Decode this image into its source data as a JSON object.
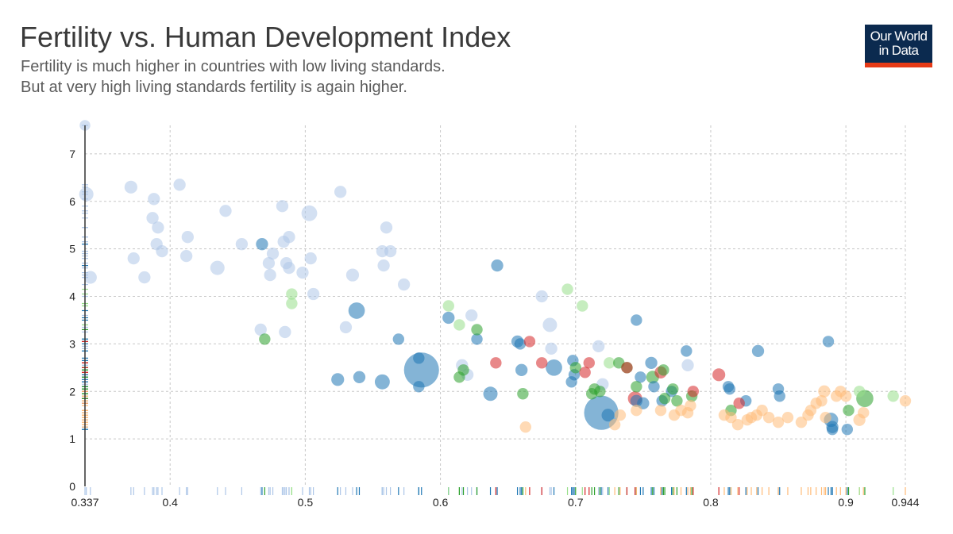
{
  "header": {
    "title": "Fertility vs. Human Development Index",
    "subtitle_lines": [
      "Fertility is much higher in countries with low living standards.",
      "But at very high living standards fertility is again higher."
    ]
  },
  "logo": {
    "line1": "Our World",
    "line2": "in Data",
    "bg_color": "#0b2a4f",
    "bar_color": "#e63a16"
  },
  "chart_data": {
    "type": "scatter",
    "title": "Fertility vs. Human Development Index",
    "xlabel": "",
    "ylabel": "",
    "xlim": [
      0.337,
      0.944
    ],
    "ylim": [
      0,
      7.6
    ],
    "x_ticks": [
      0.337,
      0.4,
      0.5,
      0.6,
      0.7,
      0.8,
      0.9,
      0.944
    ],
    "y_ticks": [
      0,
      1,
      2,
      3,
      4,
      5,
      6,
      7
    ],
    "grid": true,
    "colors": {
      "light_blue": "#aec7e8",
      "blue": "#1f77b4",
      "light_green": "#98df8a",
      "green": "#2ca02c",
      "red": "#d62728",
      "orange": "#ffbb78"
    },
    "points": [
      [
        0.337,
        7.6,
        0.75,
        "light_blue"
      ],
      [
        0.338,
        6.15,
        1,
        "light_blue"
      ],
      [
        0.341,
        4.4,
        0.9,
        "light_blue"
      ],
      [
        0.371,
        6.3,
        0.9,
        "light_blue"
      ],
      [
        0.373,
        4.8,
        0.85,
        "light_blue"
      ],
      [
        0.381,
        4.4,
        0.85,
        "light_blue"
      ],
      [
        0.388,
        6.05,
        0.85,
        "light_blue"
      ],
      [
        0.387,
        5.65,
        0.85,
        "light_blue"
      ],
      [
        0.391,
        5.45,
        0.85,
        "light_blue"
      ],
      [
        0.39,
        5.1,
        0.85,
        "light_blue"
      ],
      [
        0.394,
        4.95,
        0.85,
        "light_blue"
      ],
      [
        0.407,
        6.35,
        0.85,
        "light_blue"
      ],
      [
        0.413,
        5.25,
        0.85,
        "light_blue"
      ],
      [
        0.412,
        4.85,
        0.85,
        "light_blue"
      ],
      [
        0.435,
        4.6,
        1,
        "light_blue"
      ],
      [
        0.441,
        5.8,
        0.85,
        "light_blue"
      ],
      [
        0.453,
        5.1,
        0.85,
        "light_blue"
      ],
      [
        0.467,
        3.3,
        0.85,
        "light_blue"
      ],
      [
        0.473,
        4.7,
        0.85,
        "light_blue"
      ],
      [
        0.474,
        4.45,
        0.85,
        "light_blue"
      ],
      [
        0.476,
        4.9,
        0.85,
        "light_blue"
      ],
      [
        0.483,
        5.9,
        0.85,
        "light_blue"
      ],
      [
        0.484,
        5.15,
        0.85,
        "light_blue"
      ],
      [
        0.488,
        5.25,
        0.85,
        "light_blue"
      ],
      [
        0.486,
        4.7,
        0.85,
        "light_blue"
      ],
      [
        0.488,
        4.6,
        0.85,
        "light_blue"
      ],
      [
        0.485,
        3.25,
        0.85,
        "light_blue"
      ],
      [
        0.498,
        4.5,
        0.85,
        "light_blue"
      ],
      [
        0.503,
        5.75,
        1.1,
        "light_blue"
      ],
      [
        0.504,
        4.8,
        0.85,
        "light_blue"
      ],
      [
        0.506,
        4.05,
        0.85,
        "light_blue"
      ],
      [
        0.526,
        6.2,
        0.85,
        "light_blue"
      ],
      [
        0.53,
        3.35,
        0.85,
        "light_blue"
      ],
      [
        0.535,
        4.45,
        0.9,
        "light_blue"
      ],
      [
        0.557,
        4.95,
        0.85,
        "light_blue"
      ],
      [
        0.558,
        4.65,
        0.85,
        "light_blue"
      ],
      [
        0.56,
        5.45,
        0.85,
        "light_blue"
      ],
      [
        0.563,
        4.95,
        0.85,
        "light_blue"
      ],
      [
        0.573,
        4.25,
        0.85,
        "light_blue"
      ],
      [
        0.616,
        2.55,
        0.85,
        "light_blue"
      ],
      [
        0.623,
        3.6,
        0.85,
        "light_blue"
      ],
      [
        0.62,
        2.35,
        0.85,
        "light_blue"
      ],
      [
        0.675,
        4.0,
        0.85,
        "light_blue"
      ],
      [
        0.681,
        3.4,
        1,
        "light_blue"
      ],
      [
        0.682,
        2.9,
        0.85,
        "light_blue"
      ],
      [
        0.717,
        2.95,
        0.85,
        "light_blue"
      ],
      [
        0.72,
        2.15,
        0.85,
        "light_blue"
      ],
      [
        0.783,
        2.55,
        0.85,
        "light_blue"
      ],
      [
        0.47,
        3.1,
        0.8,
        "green"
      ],
      [
        0.49,
        4.05,
        0.8,
        "light_green"
      ],
      [
        0.49,
        3.85,
        0.8,
        "light_green"
      ],
      [
        0.606,
        3.8,
        0.8,
        "light_green"
      ],
      [
        0.614,
        3.4,
        0.8,
        "light_green"
      ],
      [
        0.694,
        4.15,
        0.8,
        "light_green"
      ],
      [
        0.705,
        3.8,
        0.8,
        "light_green"
      ],
      [
        0.725,
        2.6,
        0.8,
        "light_green"
      ],
      [
        0.935,
        1.9,
        0.8,
        "light_green"
      ],
      [
        0.91,
        2.0,
        0.8,
        "light_green"
      ],
      [
        0.468,
        5.1,
        0.85,
        "blue"
      ],
      [
        0.524,
        2.25,
        0.9,
        "blue"
      ],
      [
        0.538,
        3.7,
        1.15,
        "blue"
      ],
      [
        0.54,
        2.3,
        0.85,
        "blue"
      ],
      [
        0.557,
        2.2,
        1.05,
        "blue"
      ],
      [
        0.569,
        3.1,
        0.8,
        "blue"
      ],
      [
        0.584,
        2.1,
        0.8,
        "blue"
      ],
      [
        0.584,
        2.7,
        0.8,
        "blue"
      ],
      [
        0.586,
        2.45,
        2.45,
        "blue"
      ],
      [
        0.606,
        3.55,
        0.85,
        "blue"
      ],
      [
        0.627,
        3.1,
        0.8,
        "blue"
      ],
      [
        0.637,
        1.95,
        1,
        "blue"
      ],
      [
        0.642,
        4.65,
        0.85,
        "blue"
      ],
      [
        0.657,
        3.05,
        0.85,
        "blue"
      ],
      [
        0.659,
        3.0,
        0.8,
        "blue"
      ],
      [
        0.66,
        2.45,
        0.85,
        "blue"
      ],
      [
        0.684,
        2.5,
        1.15,
        "blue"
      ],
      [
        0.698,
        2.65,
        0.8,
        "blue"
      ],
      [
        0.697,
        2.2,
        0.8,
        "blue"
      ],
      [
        0.699,
        2.35,
        0.8,
        "blue"
      ],
      [
        0.719,
        1.55,
        2.4,
        "blue"
      ],
      [
        0.724,
        1.5,
        0.9,
        "blue"
      ],
      [
        0.745,
        1.8,
        0.85,
        "blue"
      ],
      [
        0.745,
        3.5,
        0.8,
        "blue"
      ],
      [
        0.748,
        2.3,
        0.8,
        "blue"
      ],
      [
        0.75,
        1.75,
        0.85,
        "blue"
      ],
      [
        0.756,
        2.6,
        0.85,
        "blue"
      ],
      [
        0.758,
        2.1,
        0.8,
        "blue"
      ],
      [
        0.764,
        1.8,
        0.8,
        "blue"
      ],
      [
        0.771,
        2.0,
        0.8,
        "blue"
      ],
      [
        0.782,
        2.85,
        0.8,
        "blue"
      ],
      [
        0.813,
        2.1,
        0.8,
        "blue"
      ],
      [
        0.814,
        2.05,
        0.8,
        "blue"
      ],
      [
        0.826,
        1.8,
        0.8,
        "blue"
      ],
      [
        0.835,
        2.85,
        0.85,
        "blue"
      ],
      [
        0.85,
        2.05,
        0.8,
        "blue"
      ],
      [
        0.851,
        1.9,
        0.8,
        "blue"
      ],
      [
        0.887,
        3.05,
        0.8,
        "blue"
      ],
      [
        0.889,
        1.4,
        1,
        "blue"
      ],
      [
        0.89,
        1.25,
        0.85,
        "blue"
      ],
      [
        0.89,
        1.2,
        0.8,
        "blue"
      ],
      [
        0.901,
        1.2,
        0.8,
        "blue"
      ],
      [
        0.614,
        2.3,
        0.8,
        "green"
      ],
      [
        0.617,
        2.45,
        0.8,
        "green"
      ],
      [
        0.627,
        3.3,
        0.8,
        "green"
      ],
      [
        0.661,
        1.95,
        0.8,
        "green"
      ],
      [
        0.7,
        2.5,
        0.8,
        "green"
      ],
      [
        0.712,
        1.95,
        0.8,
        "green"
      ],
      [
        0.714,
        2.05,
        0.8,
        "green"
      ],
      [
        0.718,
        2.0,
        0.8,
        "green"
      ],
      [
        0.732,
        2.6,
        0.8,
        "green"
      ],
      [
        0.738,
        2.5,
        0.8,
        "green"
      ],
      [
        0.745,
        2.1,
        0.8,
        "green"
      ],
      [
        0.757,
        2.3,
        0.9,
        "green"
      ],
      [
        0.765,
        2.45,
        0.8,
        "green"
      ],
      [
        0.766,
        1.85,
        0.8,
        "green"
      ],
      [
        0.772,
        2.05,
        0.8,
        "green"
      ],
      [
        0.775,
        1.8,
        0.8,
        "green"
      ],
      [
        0.786,
        1.9,
        0.8,
        "green"
      ],
      [
        0.815,
        1.6,
        0.8,
        "green"
      ],
      [
        0.902,
        1.6,
        0.8,
        "green"
      ],
      [
        0.914,
        1.85,
        1.2,
        "green"
      ],
      [
        0.641,
        2.6,
        0.8,
        "red"
      ],
      [
        0.666,
        3.05,
        0.8,
        "red"
      ],
      [
        0.675,
        2.6,
        0.8,
        "red"
      ],
      [
        0.707,
        2.4,
        0.8,
        "red"
      ],
      [
        0.71,
        2.6,
        0.8,
        "red"
      ],
      [
        0.738,
        2.5,
        0.8,
        "red"
      ],
      [
        0.744,
        1.85,
        1,
        "red"
      ],
      [
        0.763,
        2.4,
        0.85,
        "red"
      ],
      [
        0.787,
        2.0,
        0.8,
        "red"
      ],
      [
        0.806,
        2.35,
        0.9,
        "red"
      ],
      [
        0.821,
        1.75,
        0.8,
        "red"
      ],
      [
        0.663,
        1.25,
        0.8,
        "orange"
      ],
      [
        0.729,
        1.3,
        0.8,
        "orange"
      ],
      [
        0.733,
        1.5,
        0.8,
        "orange"
      ],
      [
        0.745,
        1.6,
        0.8,
        "orange"
      ],
      [
        0.763,
        1.6,
        0.8,
        "orange"
      ],
      [
        0.773,
        1.5,
        0.8,
        "orange"
      ],
      [
        0.778,
        1.6,
        0.8,
        "orange"
      ],
      [
        0.783,
        1.55,
        0.8,
        "orange"
      ],
      [
        0.785,
        1.7,
        0.8,
        "orange"
      ],
      [
        0.81,
        1.5,
        0.8,
        "orange"
      ],
      [
        0.815,
        1.45,
        0.8,
        "orange"
      ],
      [
        0.82,
        1.3,
        0.8,
        "orange"
      ],
      [
        0.827,
        1.4,
        0.8,
        "orange"
      ],
      [
        0.83,
        1.45,
        0.8,
        "orange"
      ],
      [
        0.834,
        1.5,
        0.8,
        "orange"
      ],
      [
        0.838,
        1.6,
        0.8,
        "orange"
      ],
      [
        0.843,
        1.45,
        0.8,
        "orange"
      ],
      [
        0.85,
        1.35,
        0.8,
        "orange"
      ],
      [
        0.857,
        1.45,
        0.8,
        "orange"
      ],
      [
        0.867,
        1.35,
        0.8,
        "orange"
      ],
      [
        0.872,
        1.5,
        0.8,
        "orange"
      ],
      [
        0.874,
        1.6,
        0.8,
        "orange"
      ],
      [
        0.878,
        1.75,
        0.8,
        "orange"
      ],
      [
        0.882,
        1.8,
        0.8,
        "orange"
      ],
      [
        0.884,
        2.0,
        0.85,
        "orange"
      ],
      [
        0.893,
        1.9,
        0.8,
        "orange"
      ],
      [
        0.896,
        2.0,
        0.8,
        "orange"
      ],
      [
        0.9,
        1.9,
        0.8,
        "orange"
      ],
      [
        0.91,
        1.4,
        0.85,
        "orange"
      ],
      [
        0.913,
        1.55,
        0.8,
        "orange"
      ],
      [
        0.944,
        1.8,
        0.8,
        "orange"
      ],
      [
        0.885,
        1.45,
        0.8,
        "orange"
      ]
    ]
  }
}
